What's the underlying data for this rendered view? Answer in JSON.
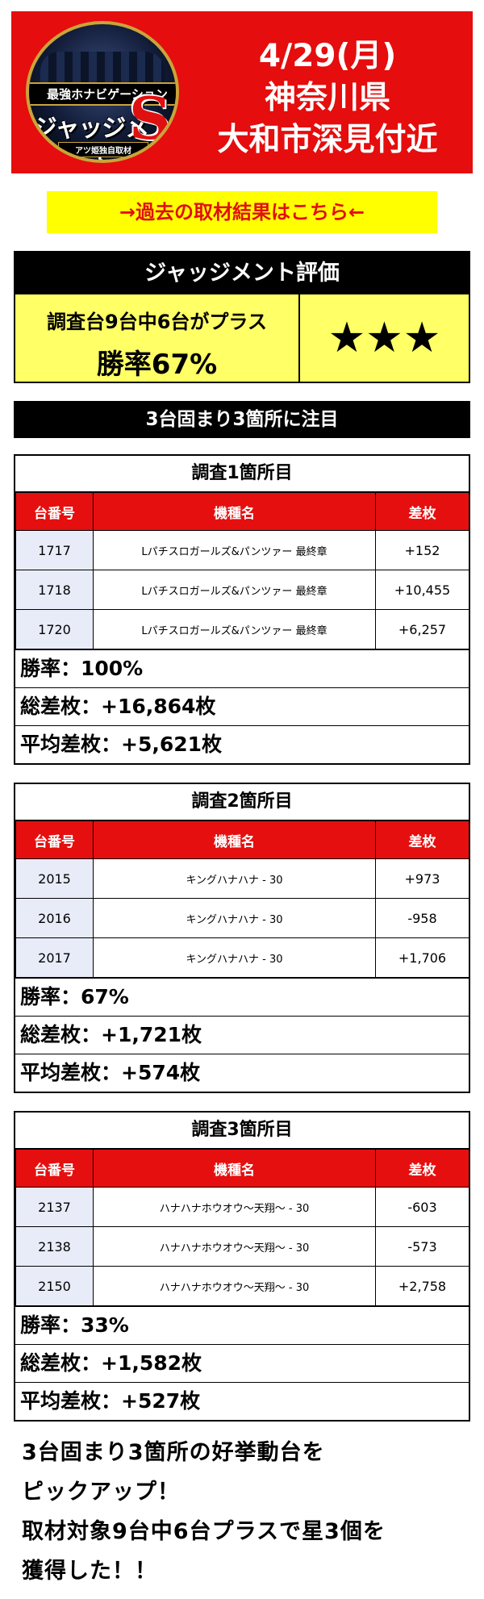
{
  "header": {
    "logo_top": "最強ホナビゲーション",
    "logo_main": "ジャッジメント",
    "logo_s": "S",
    "logo_sub": "アツ姫独自取材",
    "date": "4/29(月)",
    "prefecture": "神奈川県",
    "area": "大和市深見付近",
    "bg_color": "#e50d0d"
  },
  "past_link": "→過去の取材結果はこちら←",
  "evaluation": {
    "title": "ジャッジメント評価",
    "summary": "調査台9台中6台がプラス",
    "win_rate": "勝率67%",
    "stars": "★★★"
  },
  "focus_title": "3台固まり3箇所に注目",
  "columns": {
    "no": "台番号",
    "machine": "機種名",
    "diff": "差枚"
  },
  "sections": [
    {
      "title": "調査1箇所目",
      "rows": [
        {
          "no": "1717",
          "machine": "Lパチスロガールズ&パンツァー 最終章",
          "diff": "+152"
        },
        {
          "no": "1718",
          "machine": "Lパチスロガールズ&パンツァー 最終章",
          "diff": "+10,455"
        },
        {
          "no": "1720",
          "machine": "Lパチスロガールズ&パンツァー 最終章",
          "diff": "+6,257"
        }
      ],
      "win_rate": "勝率：100%",
      "total": "総差枚：+16,864枚",
      "average": "平均差枚：+5,621枚"
    },
    {
      "title": "調査2箇所目",
      "rows": [
        {
          "no": "2015",
          "machine": "キングハナハナ - 30",
          "diff": "+973"
        },
        {
          "no": "2016",
          "machine": "キングハナハナ - 30",
          "diff": "-958"
        },
        {
          "no": "2017",
          "machine": "キングハナハナ - 30",
          "diff": "+1,706"
        }
      ],
      "win_rate": "勝率：67%",
      "total": "総差枚：+1,721枚",
      "average": "平均差枚：+574枚"
    },
    {
      "title": "調査3箇所目",
      "rows": [
        {
          "no": "2137",
          "machine": "ハナハナホウオウ～天翔～ - 30",
          "diff": "-603"
        },
        {
          "no": "2138",
          "machine": "ハナハナホウオウ～天翔～ - 30",
          "diff": "-573"
        },
        {
          "no": "2150",
          "machine": "ハナハナホウオウ～天翔～ - 30",
          "diff": "+2,758"
        }
      ],
      "win_rate": "勝率：33%",
      "total": "総差枚：+1,582枚",
      "average": "平均差枚：+527枚"
    }
  ],
  "comment": [
    "3台固まり3箇所の好挙動台を",
    "ピックアップ！",
    "取材対象9台中6台プラスで星3個を",
    "獲得した！！"
  ]
}
